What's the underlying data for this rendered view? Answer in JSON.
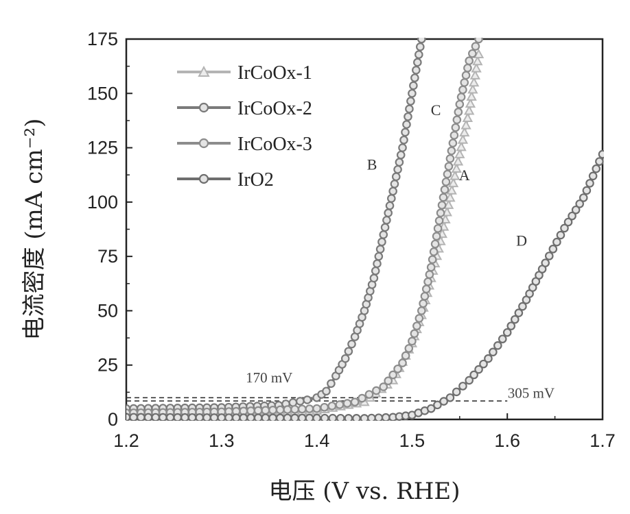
{
  "chart_data": {
    "type": "line",
    "xlabel": "电压 (V vs. RHE)",
    "ylabel": "电流密度 (mA cm⁻²)",
    "xlim": [
      1.2,
      1.7
    ],
    "ylim": [
      0,
      175
    ],
    "xticks": [
      "1.2",
      "1.3",
      "1.4",
      "1.5",
      "1.6",
      "1.7"
    ],
    "yticks": [
      "0",
      "25",
      "50",
      "75",
      "100",
      "125",
      "150",
      "175"
    ],
    "legend_position": "top-left",
    "grid": false,
    "series": [
      {
        "name": "IrCoOx-1",
        "label": "A",
        "color": "#b4b4b4",
        "marker": "triangle",
        "x": [
          1.2,
          1.3,
          1.4,
          1.45,
          1.48,
          1.5,
          1.51,
          1.52,
          1.53,
          1.54,
          1.55,
          1.56,
          1.565,
          1.57
        ],
        "y": [
          2,
          2.5,
          4,
          8,
          18,
          35,
          48,
          65,
          82,
          102,
          122,
          142,
          155,
          168
        ]
      },
      {
        "name": "IrCoOx-2",
        "label": "B",
        "color": "#7a7a7a",
        "marker": "circle",
        "x": [
          1.2,
          1.3,
          1.36,
          1.39,
          1.4,
          1.41,
          1.42,
          1.43,
          1.44,
          1.45,
          1.46,
          1.47,
          1.48,
          1.49,
          1.5,
          1.51
        ],
        "y": [
          5,
          5.5,
          6.5,
          9,
          10,
          13,
          20,
          28,
          38,
          50,
          65,
          85,
          105,
          125,
          150,
          175
        ]
      },
      {
        "name": "IrCoOx-3",
        "label": "C",
        "color": "#8c8c8c",
        "marker": "circle",
        "x": [
          1.2,
          1.3,
          1.4,
          1.44,
          1.47,
          1.49,
          1.5,
          1.51,
          1.52,
          1.53,
          1.54,
          1.55,
          1.56,
          1.57
        ],
        "y": [
          3,
          3.5,
          5,
          8,
          15,
          26,
          36,
          50,
          70,
          95,
          120,
          145,
          165,
          175
        ]
      },
      {
        "name": "IrO2",
        "label": "D",
        "color": "#6e6e6e",
        "marker": "circle",
        "x": [
          1.2,
          1.3,
          1.4,
          1.45,
          1.48,
          1.5,
          1.52,
          1.54,
          1.56,
          1.58,
          1.6,
          1.62,
          1.64,
          1.66,
          1.68,
          1.69,
          1.7
        ],
        "y": [
          1,
          0.8,
          0.6,
          0.5,
          1,
          2,
          5,
          10,
          18,
          28,
          40,
          55,
          72,
          88,
          102,
          112,
          122
        ]
      }
    ],
    "reference_lines": [
      {
        "y": 10,
        "x_from": 1.2,
        "x_to": 1.5,
        "style": "dashed"
      },
      {
        "y": 8.5,
        "x_from": 1.2,
        "x_to": 1.6,
        "style": "dashed"
      }
    ],
    "annotations": [
      {
        "text": "170 mV",
        "x": 1.35,
        "y": 17
      },
      {
        "text": "305 mV",
        "x": 1.625,
        "y": 10
      },
      {
        "text": "A",
        "x": 1.555,
        "y": 110
      },
      {
        "text": "B",
        "x": 1.458,
        "y": 115
      },
      {
        "text": "C",
        "x": 1.525,
        "y": 140
      },
      {
        "text": "D",
        "x": 1.615,
        "y": 80
      }
    ]
  }
}
